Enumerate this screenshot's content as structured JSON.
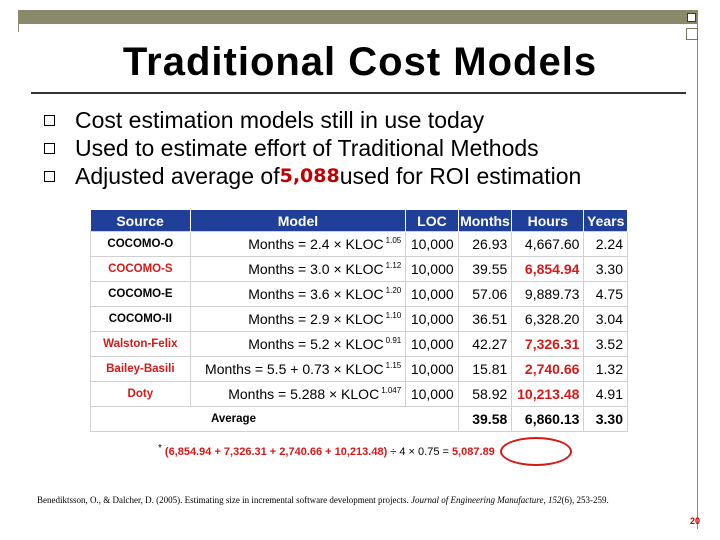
{
  "slide": {
    "title": "Traditional Cost Models",
    "bullets": [
      "Cost estimation models still in use today",
      "Used to estimate effort of Traditional Methods"
    ],
    "bullet3": {
      "prefix": "Adjusted average of ",
      "highlight": "5,088",
      "suffix": " used for ROI estimation"
    },
    "page_number": "20"
  },
  "table": {
    "headers": [
      "Source",
      "Model",
      "LOC",
      "Months",
      "Hours",
      "Years"
    ],
    "rows": [
      {
        "source": "COCOMO-O",
        "source_red": false,
        "model": "Months = 2.4 × KLOC",
        "exp": "1.05",
        "loc": "10,000",
        "months": "26.93",
        "hours": "4,667.60",
        "hours_red": false,
        "years": "2.24"
      },
      {
        "source": "COCOMO-S",
        "source_red": true,
        "model": "Months = 3.0 × KLOC",
        "exp": "1.12",
        "loc": "10,000",
        "months": "39.55",
        "hours": "6,854.94",
        "hours_red": true,
        "years": "3.30"
      },
      {
        "source": "COCOMO-E",
        "source_red": false,
        "model": "Months = 3.6 × KLOC",
        "exp": "1.20",
        "loc": "10,000",
        "months": "57.06",
        "hours": "9,889.73",
        "hours_red": false,
        "years": "4.75"
      },
      {
        "source": "COCOMO-II",
        "source_red": false,
        "model": "Months = 2.9 × KLOC",
        "exp": "1.10",
        "loc": "10,000",
        "months": "36.51",
        "hours": "6,328.20",
        "hours_red": false,
        "years": "3.04"
      },
      {
        "source": "Walston-Felix",
        "source_red": true,
        "model": "Months = 5.2 × KLOC",
        "exp": "0.91",
        "loc": "10,000",
        "months": "42.27",
        "hours": "7,326.31",
        "hours_red": true,
        "years": "3.52"
      },
      {
        "source": "Bailey-Basili",
        "source_red": true,
        "model": "Months = 5.5 + 0.73 × KLOC",
        "exp": "1.15",
        "loc": "10,000",
        "months": "15.81",
        "hours": "2,740.66",
        "hours_red": true,
        "years": "1.32"
      },
      {
        "source": "Doty",
        "source_red": true,
        "model": "Months = 5.288 × KLOC",
        "exp": "1.047",
        "loc": "10,000",
        "months": "58.92",
        "hours": "10,213.48",
        "hours_red": true,
        "years": "4.91"
      }
    ],
    "average": {
      "label": "Average",
      "months": "39.58",
      "hours": "6,860.13",
      "years": "3.30"
    }
  },
  "footnote": {
    "star": "*",
    "expression": "(6,854.94 + 7,326.31 + 2,740.66 + 10,213.48)",
    "divide": " ÷ 4 × 0.75 = ",
    "result": "5,087.89"
  },
  "citation": {
    "authors": "Benediktsson, O., & Dalcher, D. (2005). Estimating size in incremental software development projects. ",
    "journal": "Journal of Engineering Manufacture, 152",
    "issue": "(6)",
    "pages": ", 253-259."
  },
  "colors": {
    "header_bg": "#1f3f99",
    "accent_red": "#d81818",
    "frame": "#8a8a6a"
  }
}
